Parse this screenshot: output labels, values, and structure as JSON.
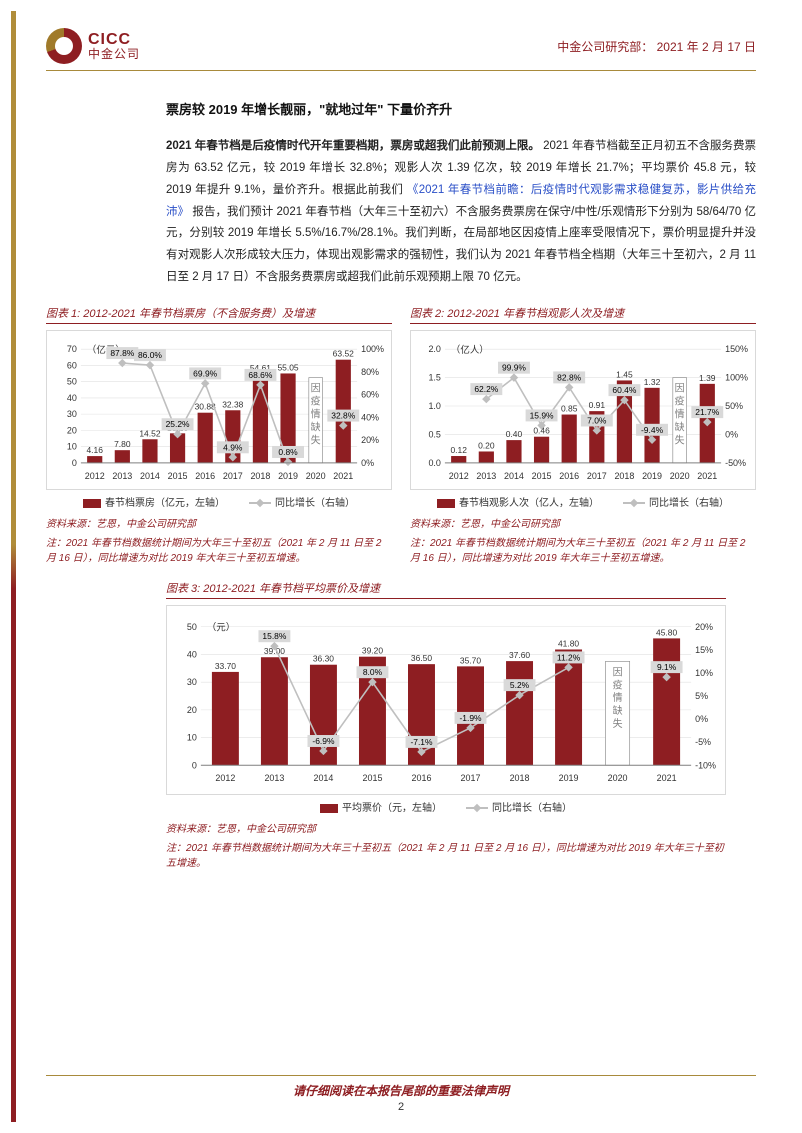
{
  "header": {
    "logo_en": "CICC",
    "logo_cn": "中金公司",
    "dept": "中金公司研究部：",
    "date": "2021 年 2 月 17 日"
  },
  "section_title": "票房较 2019 年增长靓丽，\"就地过年\" 下量价齐升",
  "body": {
    "lead": "2021 年春节档是后疫情时代开年重要档期，票房或超我们此前预测上限。",
    "p1a": "2021 年春节档截至正月初五不含服务费票房为 63.52 亿元，较 2019 年增长 32.8%；观影人次 1.39 亿次，较 2019 年增长 21.7%；平均票价 45.8 元，较 2019 年提升 9.1%，量价齐升。根据此前我们",
    "link": "《2021 年春节档前瞻：后疫情时代观影需求稳健复苏，影片供给充沛》",
    "p1b": "报告，我们预计 2021 年春节档（大年三十至初六）不含服务费票房在保守/中性/乐观情形下分别为 58/64/70 亿元，分别较 2019 年增长 5.5%/16.7%/28.1%。我们判断，在局部地区因疫情上座率受限情况下，票价明显提升并没有对观影人次形成较大压力，体现出观影需求的强韧性，我们认为 2021 年春节档全档期（大年三十至初六，2 月 11 日至 2 月 17 日）不含服务费票房或超我们此前乐观预期上限 70 亿元。"
  },
  "charts": {
    "colors": {
      "bar": "#8e1e22",
      "line": "#bfbfbf",
      "label_box": "#d9d9d9",
      "grid": "#e0e0e0",
      "axis": "#808080",
      "text": "#333333",
      "missing_text": "#808080"
    },
    "chart1": {
      "title": "图表 1: 2012-2021 年春节档票房（不含服务费）及增速",
      "type": "bar+line",
      "y1_label": "（亿元）",
      "y1_max": 70,
      "y1_step": 10,
      "y2_max": 100,
      "y2_step": 20,
      "categories": [
        "2012",
        "2013",
        "2014",
        "2015",
        "2016",
        "2017",
        "2018",
        "2019",
        "2020",
        "2021"
      ],
      "bars": [
        4.16,
        7.8,
        14.52,
        18.18,
        30.88,
        32.38,
        54.61,
        55.05,
        null,
        63.52
      ],
      "line": [
        null,
        87.8,
        86.0,
        25.2,
        69.9,
        4.9,
        68.6,
        0.8,
        null,
        32.8
      ],
      "missing_label": "因\n疫\n情\n缺\n失",
      "legend_bar": "春节档票房（亿元，左轴）",
      "legend_line": "同比增长（右轴）",
      "source": "资料来源：艺恩，中金公司研究部",
      "note": "注：2021 年春节档数据统计期间为大年三十至初五（2021 年 2 月 11 日至 2 月 16 日），同比增速为对比 2019 年大年三十至初五增速。"
    },
    "chart2": {
      "title": "图表 2: 2012-2021 年春节档观影人次及增速",
      "type": "bar+line",
      "y1_label": "（亿人）",
      "y1_max": 2.0,
      "y1_step": 0.5,
      "y2_max": 150,
      "y2_min": -50,
      "y2_step": 50,
      "categories": [
        "2012",
        "2013",
        "2014",
        "2015",
        "2016",
        "2017",
        "2018",
        "2019",
        "2020",
        "2021"
      ],
      "bars": [
        0.12,
        0.2,
        0.4,
        0.46,
        0.85,
        0.91,
        1.45,
        1.32,
        null,
        1.39
      ],
      "line": [
        null,
        62.2,
        99.9,
        15.9,
        82.8,
        7.0,
        60.4,
        -9.4,
        null,
        21.7
      ],
      "missing_label": "因\n疫\n情\n缺\n失",
      "legend_bar": "春节档观影人次（亿人，左轴）",
      "legend_line": "同比增长（右轴）",
      "source": "资料来源：艺恩，中金公司研究部",
      "note": "注：2021 年春节档数据统计期间为大年三十至初五（2021 年 2 月 11 日至 2 月 16 日），同比增速为对比 2019 年大年三十至初五增速。"
    },
    "chart3": {
      "title": "图表 3: 2012-2021 年春节档平均票价及增速",
      "type": "bar+line",
      "y1_label": "（元）",
      "y1_max": 50,
      "y1_step": 10,
      "y2_max": 20,
      "y2_min": -10,
      "y2_step": 5,
      "categories": [
        "2012",
        "2013",
        "2014",
        "2015",
        "2016",
        "2017",
        "2018",
        "2019",
        "2020",
        "2021"
      ],
      "bars": [
        33.7,
        39.0,
        36.3,
        39.2,
        36.5,
        35.7,
        37.6,
        41.8,
        null,
        45.8
      ],
      "line": [
        null,
        15.8,
        -6.9,
        8.0,
        -7.1,
        -1.9,
        5.2,
        11.2,
        null,
        9.1
      ],
      "missing_label": "因\n疫\n情\n缺\n失",
      "legend_bar": "平均票价（元，左轴）",
      "legend_line": "同比增长（右轴）",
      "source": "资料来源：艺恩，中金公司研究部",
      "note": "注：2021 年春节档数据统计期间为大年三十至初五（2021 年 2 月 11 日至 2 月 16 日），同比增速为对比 2019 年大年三十至初五增速。"
    }
  },
  "footer": {
    "disclaimer": "请仔细阅读在本报告尾部的重要法律声明",
    "page": "2"
  }
}
